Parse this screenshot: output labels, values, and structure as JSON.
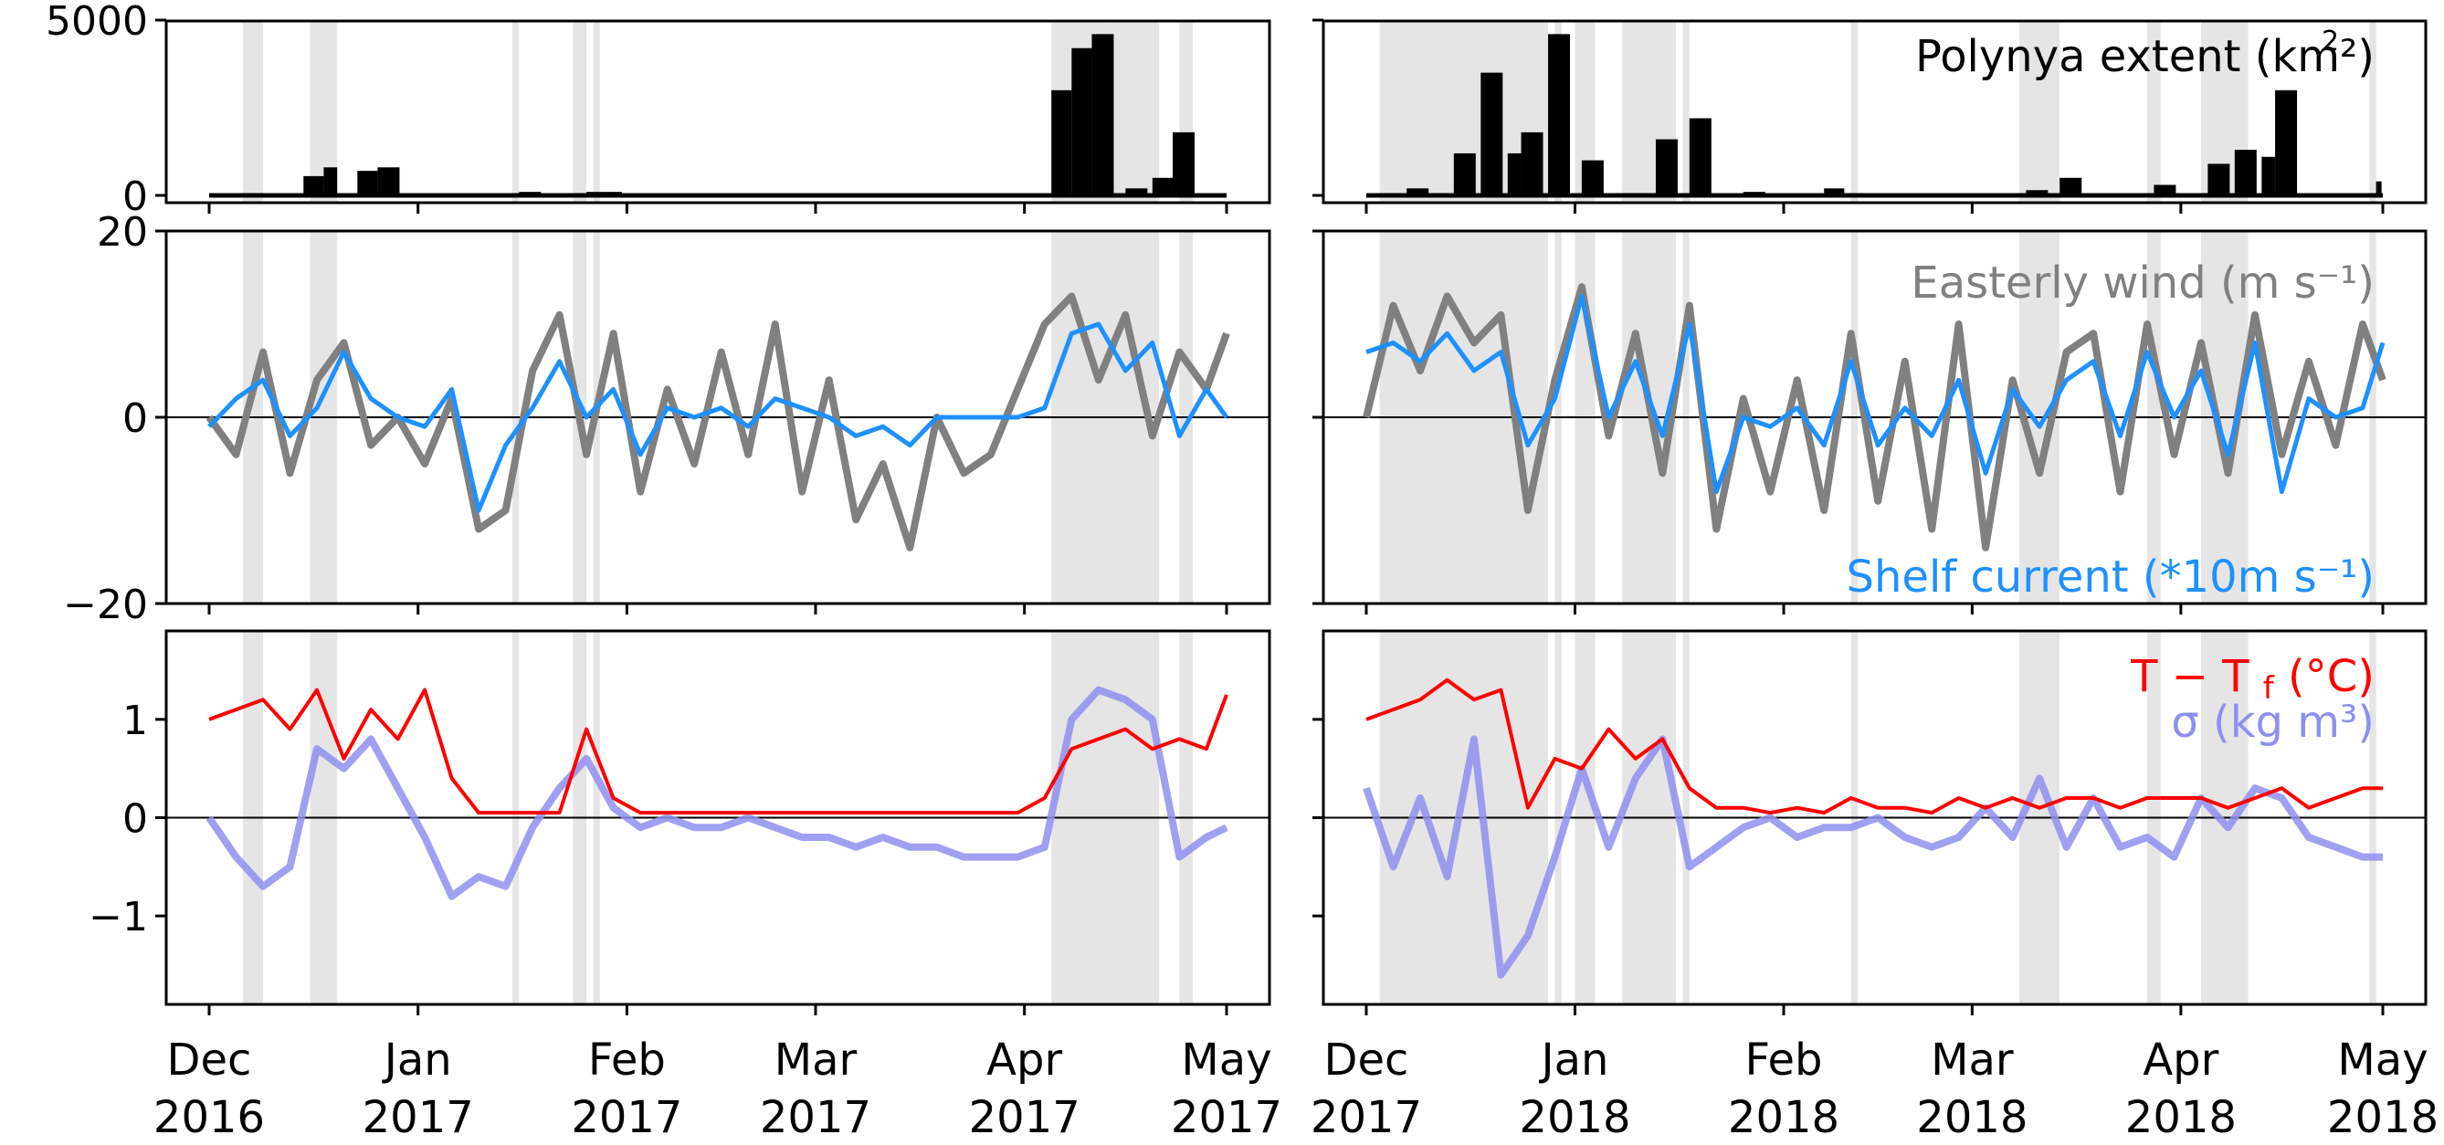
{
  "colors": {
    "polynya": "#000000",
    "wind": "#808080",
    "current": "#1e90ff",
    "temperature": "#ff0000",
    "density": "#8f8ff0",
    "shading": "#e5e5e5"
  },
  "chart_data": [
    {
      "type": "bar",
      "panel": "polynya-2016",
      "ylim": [
        0,
        5000
      ],
      "yticks": [
        "0",
        "5000"
      ],
      "xlim": [
        "2016-12-01",
        "2017-05-01"
      ],
      "xticks": [
        "Dec\n2016",
        "Jan\n2017",
        "Feb\n2017",
        "Mar\n2017",
        "Apr\n2017",
        "May\n2017"
      ],
      "x": [
        "2016-12-01",
        "2016-12-15",
        "2016-12-18",
        "2016-12-20",
        "2016-12-23",
        "2016-12-26",
        "2017-01-16",
        "2017-01-26",
        "2017-01-28",
        "2017-04-02",
        "2017-04-05",
        "2017-04-08",
        "2017-04-11",
        "2017-04-16",
        "2017-04-20",
        "2017-04-23",
        "2017-04-27",
        "2017-05-01"
      ],
      "values": [
        0,
        550,
        800,
        0,
        700,
        800,
        100,
        100,
        100,
        0,
        3000,
        4200,
        4600,
        200,
        500,
        1800,
        0,
        0
      ],
      "annotation": "Polynya extent (km²)"
    },
    {
      "type": "bar",
      "panel": "polynya-2017",
      "ylim": [
        0,
        5000
      ],
      "xlim": [
        "2017-12-01",
        "2018-05-01"
      ],
      "xticks": [
        "Dec\n2017",
        "Jan\n2018",
        "Feb\n2018",
        "Mar\n2018",
        "Apr\n2018",
        "May\n2018"
      ],
      "x": [
        "2017-12-01",
        "2017-12-07",
        "2017-12-14",
        "2017-12-18",
        "2017-12-22",
        "2017-12-24",
        "2017-12-28",
        "2018-01-02",
        "2018-01-08",
        "2018-01-13",
        "2018-01-18",
        "2018-01-26",
        "2018-02-07",
        "2018-02-10",
        "2018-03-09",
        "2018-03-14",
        "2018-03-28",
        "2018-04-05",
        "2018-04-09",
        "2018-04-13",
        "2018-04-15",
        "2018-04-30"
      ],
      "values": [
        0,
        200,
        1200,
        3500,
        1200,
        1800,
        4600,
        1000,
        0,
        1600,
        2200,
        100,
        200,
        0,
        150,
        500,
        300,
        900,
        1300,
        1100,
        3000,
        400
      ],
      "annotation": ""
    },
    {
      "type": "line",
      "panel": "wind-current-2016",
      "ylim": [
        -20,
        20
      ],
      "yticks": [
        "−20",
        "0",
        "20"
      ],
      "xlim": [
        "2016-12-01",
        "2017-05-01"
      ],
      "series": [
        {
          "name": "Easterly wind (m s⁻¹)",
          "x": [
            "2016-12-01",
            "2016-12-05",
            "2016-12-09",
            "2016-12-13",
            "2016-12-17",
            "2016-12-21",
            "2016-12-25",
            "2016-12-29",
            "2017-01-02",
            "2017-01-06",
            "2017-01-10",
            "2017-01-14",
            "2017-01-18",
            "2017-01-22",
            "2017-01-26",
            "2017-01-30",
            "2017-02-03",
            "2017-02-07",
            "2017-02-11",
            "2017-02-15",
            "2017-02-19",
            "2017-02-23",
            "2017-02-27",
            "2017-03-03",
            "2017-03-07",
            "2017-03-11",
            "2017-03-15",
            "2017-03-19",
            "2017-03-23",
            "2017-03-27",
            "2017-03-31",
            "2017-04-04",
            "2017-04-08",
            "2017-04-12",
            "2017-04-16",
            "2017-04-20",
            "2017-04-24",
            "2017-04-28",
            "2017-05-01"
          ],
          "values": [
            0,
            -4,
            7,
            -6,
            4,
            8,
            -3,
            0,
            -5,
            2,
            -12,
            -10,
            5,
            11,
            -4,
            9,
            -8,
            3,
            -5,
            7,
            -4,
            10,
            -8,
            4,
            -11,
            -5,
            -14,
            0,
            -6,
            -4,
            3,
            10,
            13,
            4,
            11,
            -2,
            7,
            3,
            9
          ]
        },
        {
          "name": "Shelf current (*10m s⁻¹)",
          "x": [
            "2016-12-01",
            "2016-12-05",
            "2016-12-09",
            "2016-12-13",
            "2016-12-17",
            "2016-12-21",
            "2016-12-25",
            "2016-12-29",
            "2017-01-02",
            "2017-01-06",
            "2017-01-10",
            "2017-01-14",
            "2017-01-18",
            "2017-01-22",
            "2017-01-26",
            "2017-01-30",
            "2017-02-03",
            "2017-02-07",
            "2017-02-11",
            "2017-02-15",
            "2017-02-19",
            "2017-02-23",
            "2017-02-27",
            "2017-03-03",
            "2017-03-07",
            "2017-03-11",
            "2017-03-15",
            "2017-03-19",
            "2017-03-23",
            "2017-03-27",
            "2017-03-31",
            "2017-04-04",
            "2017-04-08",
            "2017-04-12",
            "2017-04-16",
            "2017-04-20",
            "2017-04-24",
            "2017-04-28",
            "2017-05-01"
          ],
          "values": [
            -1,
            2,
            4,
            -2,
            1,
            7,
            2,
            0,
            -1,
            3,
            -10,
            -3,
            1,
            6,
            0,
            3,
            -4,
            1,
            0,
            1,
            -1,
            2,
            1,
            0,
            -2,
            -1,
            -3,
            0,
            0,
            0,
            0,
            1,
            9,
            10,
            5,
            8,
            -2,
            3,
            0
          ]
        }
      ],
      "shelf_label": "Shelf current (*10m s⁻¹)",
      "wind_label": "Easterly wind (m s⁻¹)"
    },
    {
      "type": "line",
      "panel": "wind-current-2017",
      "ylim": [
        -20,
        20
      ],
      "xlim": [
        "2017-12-01",
        "2018-05-01"
      ],
      "series": [
        {
          "name": "Easterly wind (m s⁻¹)",
          "x": [
            "2017-12-01",
            "2017-12-05",
            "2017-12-09",
            "2017-12-13",
            "2017-12-17",
            "2017-12-21",
            "2017-12-25",
            "2017-12-29",
            "2018-01-02",
            "2018-01-06",
            "2018-01-10",
            "2018-01-14",
            "2018-01-18",
            "2018-01-22",
            "2018-01-26",
            "2018-01-30",
            "2018-02-03",
            "2018-02-07",
            "2018-02-11",
            "2018-02-15",
            "2018-02-19",
            "2018-02-23",
            "2018-02-27",
            "2018-03-03",
            "2018-03-07",
            "2018-03-11",
            "2018-03-15",
            "2018-03-19",
            "2018-03-23",
            "2018-03-27",
            "2018-03-31",
            "2018-04-04",
            "2018-04-08",
            "2018-04-12",
            "2018-04-16",
            "2018-04-20",
            "2018-04-24",
            "2018-04-28",
            "2018-05-01"
          ],
          "values": [
            0,
            12,
            5,
            13,
            8,
            11,
            -10,
            4,
            14,
            -2,
            9,
            -6,
            12,
            -12,
            2,
            -8,
            4,
            -10,
            9,
            -9,
            6,
            -12,
            10,
            -14,
            4,
            -6,
            7,
            9,
            -8,
            10,
            -4,
            8,
            -6,
            11,
            -4,
            6,
            -3,
            10,
            4
          ]
        },
        {
          "name": "Shelf current (*10m s⁻¹)",
          "x": [
            "2017-12-01",
            "2017-12-05",
            "2017-12-09",
            "2017-12-13",
            "2017-12-17",
            "2017-12-21",
            "2017-12-25",
            "2017-12-29",
            "2018-01-02",
            "2018-01-06",
            "2018-01-10",
            "2018-01-14",
            "2018-01-18",
            "2018-01-22",
            "2018-01-26",
            "2018-01-30",
            "2018-02-03",
            "2018-02-07",
            "2018-02-11",
            "2018-02-15",
            "2018-02-19",
            "2018-02-23",
            "2018-02-27",
            "2018-03-03",
            "2018-03-07",
            "2018-03-11",
            "2018-03-15",
            "2018-03-19",
            "2018-03-23",
            "2018-03-27",
            "2018-03-31",
            "2018-04-04",
            "2018-04-08",
            "2018-04-12",
            "2018-04-16",
            "2018-04-20",
            "2018-04-24",
            "2018-04-28",
            "2018-05-01"
          ],
          "values": [
            7,
            8,
            6,
            9,
            5,
            7,
            -3,
            2,
            13,
            0,
            6,
            -2,
            10,
            -8,
            0,
            -1,
            1,
            -3,
            6,
            -3,
            1,
            -2,
            4,
            -6,
            3,
            -1,
            4,
            6,
            -2,
            7,
            0,
            5,
            -4,
            8,
            -8,
            2,
            0,
            1,
            8
          ]
        }
      ]
    },
    {
      "type": "line",
      "panel": "temp-density-2016",
      "ylim": [
        -1.9,
        1.9
      ],
      "yticks": [
        "−1",
        "0",
        "1"
      ],
      "xlim": [
        "2016-12-01",
        "2017-05-01"
      ],
      "series": [
        {
          "name": "T − T_f (°C)",
          "x": [
            "2016-12-01",
            "2016-12-05",
            "2016-12-09",
            "2016-12-13",
            "2016-12-17",
            "2016-12-21",
            "2016-12-25",
            "2016-12-29",
            "2017-01-02",
            "2017-01-06",
            "2017-01-10",
            "2017-01-14",
            "2017-01-18",
            "2017-01-22",
            "2017-01-26",
            "2017-01-30",
            "2017-02-03",
            "2017-02-07",
            "2017-02-11",
            "2017-02-15",
            "2017-02-19",
            "2017-02-23",
            "2017-02-27",
            "2017-03-03",
            "2017-03-07",
            "2017-03-11",
            "2017-03-15",
            "2017-03-19",
            "2017-03-23",
            "2017-03-27",
            "2017-03-31",
            "2017-04-04",
            "2017-04-08",
            "2017-04-12",
            "2017-04-16",
            "2017-04-20",
            "2017-04-24",
            "2017-04-28",
            "2017-05-01"
          ],
          "values": [
            1.0,
            1.1,
            1.2,
            0.9,
            1.3,
            0.6,
            1.1,
            0.8,
            1.3,
            0.4,
            0.05,
            0.05,
            0.05,
            0.05,
            0.9,
            0.2,
            0.05,
            0.05,
            0.05,
            0.05,
            0.05,
            0.05,
            0.05,
            0.05,
            0.05,
            0.05,
            0.05,
            0.05,
            0.05,
            0.05,
            0.05,
            0.2,
            0.7,
            0.8,
            0.9,
            0.7,
            0.8,
            0.7,
            1.25
          ]
        },
        {
          "name": "σ (kg m³)",
          "x": [
            "2016-12-01",
            "2016-12-05",
            "2016-12-09",
            "2016-12-13",
            "2016-12-17",
            "2016-12-21",
            "2016-12-25",
            "2016-12-29",
            "2017-01-02",
            "2017-01-06",
            "2017-01-10",
            "2017-01-14",
            "2017-01-18",
            "2017-01-22",
            "2017-01-26",
            "2017-01-30",
            "2017-02-03",
            "2017-02-07",
            "2017-02-11",
            "2017-02-15",
            "2017-02-19",
            "2017-02-23",
            "2017-02-27",
            "2017-03-03",
            "2017-03-07",
            "2017-03-11",
            "2017-03-15",
            "2017-03-19",
            "2017-03-23",
            "2017-03-27",
            "2017-03-31",
            "2017-04-04",
            "2017-04-08",
            "2017-04-12",
            "2017-04-16",
            "2017-04-20",
            "2017-04-24",
            "2017-04-28",
            "2017-05-01"
          ],
          "values": [
            0.0,
            -0.4,
            -0.7,
            -0.5,
            0.7,
            0.5,
            0.8,
            0.3,
            -0.2,
            -0.8,
            -0.6,
            -0.7,
            -0.1,
            0.3,
            0.6,
            0.1,
            -0.1,
            0.0,
            -0.1,
            -0.1,
            0.0,
            -0.1,
            -0.2,
            -0.2,
            -0.3,
            -0.2,
            -0.3,
            -0.3,
            -0.4,
            -0.4,
            -0.4,
            -0.3,
            1.0,
            1.3,
            1.2,
            1.0,
            -0.4,
            -0.2,
            -0.1
          ]
        }
      ],
      "temp_label": "T − T",
      "temp_label_sub": "f",
      "temp_label_unit": "(°C)",
      "density_label": "σ (kg m³)"
    },
    {
      "type": "line",
      "panel": "temp-density-2017",
      "ylim": [
        -1.9,
        1.9
      ],
      "xlim": [
        "2017-12-01",
        "2018-05-01"
      ],
      "series": [
        {
          "name": "T − T_f (°C)",
          "x": [
            "2017-12-01",
            "2017-12-05",
            "2017-12-09",
            "2017-12-13",
            "2017-12-17",
            "2017-12-21",
            "2017-12-25",
            "2017-12-29",
            "2018-01-02",
            "2018-01-06",
            "2018-01-10",
            "2018-01-14",
            "2018-01-18",
            "2018-01-22",
            "2018-01-26",
            "2018-01-30",
            "2018-02-03",
            "2018-02-07",
            "2018-02-11",
            "2018-02-15",
            "2018-02-19",
            "2018-02-23",
            "2018-02-27",
            "2018-03-03",
            "2018-03-07",
            "2018-03-11",
            "2018-03-15",
            "2018-03-19",
            "2018-03-23",
            "2018-03-27",
            "2018-03-31",
            "2018-04-04",
            "2018-04-08",
            "2018-04-12",
            "2018-04-16",
            "2018-04-20",
            "2018-04-24",
            "2018-04-28",
            "2018-05-01"
          ],
          "values": [
            1.0,
            1.1,
            1.2,
            1.4,
            1.2,
            1.3,
            0.1,
            0.6,
            0.5,
            0.9,
            0.6,
            0.8,
            0.3,
            0.1,
            0.1,
            0.05,
            0.1,
            0.05,
            0.2,
            0.1,
            0.1,
            0.05,
            0.2,
            0.1,
            0.2,
            0.1,
            0.2,
            0.2,
            0.1,
            0.2,
            0.2,
            0.2,
            0.1,
            0.2,
            0.3,
            0.1,
            0.2,
            0.3,
            0.3
          ]
        },
        {
          "name": "σ (kg m³)",
          "x": [
            "2017-12-01",
            "2017-12-05",
            "2017-12-09",
            "2017-12-13",
            "2017-12-17",
            "2017-12-21",
            "2017-12-25",
            "2017-12-29",
            "2018-01-02",
            "2018-01-06",
            "2018-01-10",
            "2018-01-14",
            "2018-01-18",
            "2018-01-22",
            "2018-01-26",
            "2018-01-30",
            "2018-02-03",
            "2018-02-07",
            "2018-02-11",
            "2018-02-15",
            "2018-02-19",
            "2018-02-23",
            "2018-02-27",
            "2018-03-03",
            "2018-03-07",
            "2018-03-11",
            "2018-03-15",
            "2018-03-19",
            "2018-03-23",
            "2018-03-27",
            "2018-03-31",
            "2018-04-04",
            "2018-04-08",
            "2018-04-12",
            "2018-04-16",
            "2018-04-20",
            "2018-04-24",
            "2018-04-28",
            "2018-05-01"
          ],
          "values": [
            0.3,
            -0.5,
            0.2,
            -0.6,
            0.8,
            -1.6,
            -1.2,
            -0.4,
            0.5,
            -0.3,
            0.4,
            0.8,
            -0.5,
            -0.3,
            -0.1,
            0.0,
            -0.2,
            -0.1,
            -0.1,
            0.0,
            -0.2,
            -0.3,
            -0.2,
            0.1,
            -0.2,
            0.4,
            -0.3,
            0.2,
            -0.3,
            -0.2,
            -0.4,
            0.2,
            -0.1,
            0.3,
            0.2,
            -0.2,
            -0.3,
            -0.4,
            -0.4
          ]
        }
      ]
    }
  ],
  "shaded_periods": {
    "left": [
      [
        "2016-12-06",
        "2016-12-09"
      ],
      [
        "2016-12-16",
        "2016-12-20"
      ],
      [
        "2017-01-15",
        "2017-01-16"
      ],
      [
        "2017-01-24",
        "2017-01-26"
      ],
      [
        "2017-01-27",
        "2017-01-28"
      ],
      [
        "2017-04-05",
        "2017-04-13"
      ],
      [
        "2017-04-13",
        "2017-04-21"
      ],
      [
        "2017-04-24",
        "2017-04-26"
      ]
    ],
    "right": [
      [
        "2017-12-03",
        "2017-12-28"
      ],
      [
        "2017-12-29",
        "2017-12-30"
      ],
      [
        "2018-01-01",
        "2018-01-04"
      ],
      [
        "2018-01-08",
        "2018-01-16"
      ],
      [
        "2018-01-17",
        "2018-01-18"
      ],
      [
        "2018-02-11",
        "2018-02-12"
      ],
      [
        "2018-03-08",
        "2018-03-14"
      ],
      [
        "2018-03-27",
        "2018-03-29"
      ],
      [
        "2018-04-04",
        "2018-04-11"
      ],
      [
        "2018-04-29",
        "2018-04-30"
      ]
    ]
  }
}
